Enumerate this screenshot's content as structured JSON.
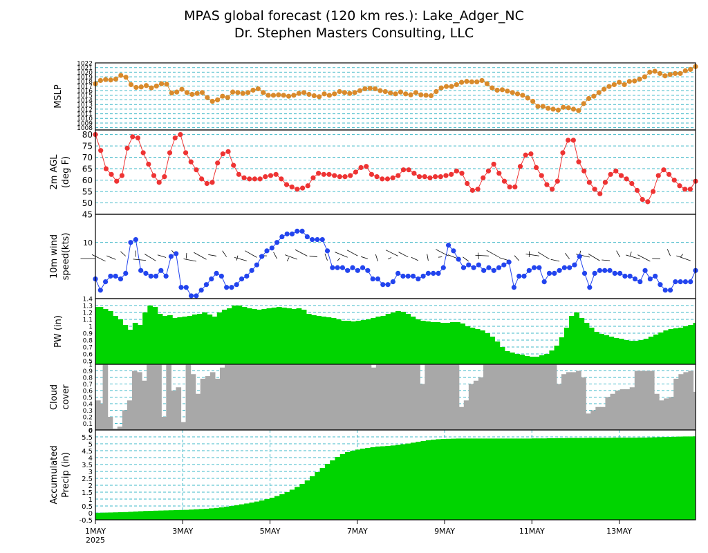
{
  "title": "MPAS global forecast (120 km res.): Lake_Adger_NC",
  "subtitle": "Dr. Stephen Masters Consulting, LLC",
  "colors": {
    "mslp": "#d98a2b",
    "temp": "#ee3333",
    "wind": "#2244ee",
    "green": "#00d400",
    "cloud": "#a8a8a8",
    "grid": "#3fb8c8"
  },
  "x_axis": {
    "tick_labels": [
      "1MAY",
      "3MAY",
      "5MAY",
      "7MAY",
      "9MAY",
      "11MAY",
      "13MAY"
    ],
    "year_label": "2025",
    "tick_days": [
      0,
      2,
      4,
      6,
      8,
      10,
      12
    ],
    "start_day": 0,
    "end_day": 13.75
  },
  "chart_data": [
    {
      "type": "line",
      "ylabel": "MSLP",
      "ylim": [
        1007.5,
        1022
      ],
      "yticks": [
        "1008",
        "1009",
        "1010",
        "1011",
        "1012",
        "1013",
        "1014",
        "1015",
        "1016",
        "1017",
        "1018",
        "1019",
        "1020",
        "1021",
        "1022"
      ],
      "series": [
        {
          "values": [
            1017.5,
            1018.2,
            1018.4,
            1018.3,
            1018.5,
            1019.3,
            1018.9,
            1017.3,
            1016.7,
            1016.8,
            1017.1,
            1016.6,
            1017.0,
            1017.5,
            1017.4,
            1015.5,
            1015.7,
            1016.3,
            1015.6,
            1015.2,
            1015.4,
            1015.6,
            1014.5,
            1013.7,
            1014.0,
            1014.8,
            1014.5,
            1015.7,
            1015.6,
            1015.4,
            1015.6,
            1016.1,
            1016.4,
            1015.6,
            1015.0,
            1015.0,
            1015.1,
            1015.0,
            1014.8,
            1015.0,
            1015.4,
            1015.6,
            1015.2,
            1014.9,
            1014.7,
            1015.3,
            1015.0,
            1015.3,
            1015.8,
            1015.6,
            1015.4,
            1015.6,
            1016.0,
            1016.4,
            1016.5,
            1016.4,
            1016.0,
            1015.8,
            1015.5,
            1015.3,
            1015.7,
            1015.3,
            1015.1,
            1015.6,
            1015.1,
            1015.0,
            1014.9,
            1015.8,
            1016.6,
            1016.9,
            1016.9,
            1017.3,
            1017.8,
            1018.0,
            1017.9,
            1017.9,
            1018.2,
            1017.5,
            1016.6,
            1016.1,
            1016.2,
            1015.9,
            1015.6,
            1015.3,
            1015.0,
            1014.4,
            1013.7,
            1012.6,
            1012.6,
            1012.2,
            1012.0,
            1011.8,
            1012.4,
            1012.3,
            1012.0,
            1011.7,
            1013.2,
            1014.3,
            1014.8,
            1015.6,
            1016.3,
            1016.9,
            1017.3,
            1017.8,
            1017.3,
            1018.0,
            1018.1,
            1018.5,
            1019.0,
            1020.0,
            1020.2,
            1019.7,
            1019.2,
            1019.5,
            1019.7,
            1019.7,
            1020.3,
            1020.6,
            1021.2
          ]
        }
      ]
    },
    {
      "type": "line",
      "ylabel": "2m AGL (deg F)",
      "ylim": [
        45,
        82
      ],
      "yticks": [
        "45",
        "50",
        "55",
        "60",
        "65",
        "70",
        "75",
        "80"
      ],
      "series": [
        {
          "values": [
            80,
            73,
            65,
            62.5,
            59.5,
            62,
            74,
            79,
            78.5,
            72,
            67,
            62,
            59,
            61.5,
            72,
            78.5,
            80,
            72,
            68,
            64.5,
            60.5,
            58.5,
            59,
            67.5,
            71.5,
            72.5,
            66.5,
            62.5,
            61,
            60.5,
            60.5,
            60.5,
            61.5,
            62,
            62.5,
            60.5,
            58,
            57,
            56,
            56.5,
            57.5,
            61,
            63,
            62.5,
            62.5,
            62,
            61.5,
            61.5,
            62,
            63.5,
            65.5,
            66,
            62.5,
            61.5,
            60.5,
            60.5,
            61,
            62,
            64.5,
            64.5,
            63,
            61.5,
            61.5,
            61,
            61.5,
            61.5,
            62,
            62.5,
            64,
            63,
            58.5,
            55.5,
            56,
            61,
            64,
            67,
            63,
            59.5,
            57,
            57,
            66,
            71,
            71.5,
            65.5,
            62,
            58,
            56,
            59.5,
            72,
            77.5,
            77.5,
            68,
            64,
            59,
            56,
            54,
            59,
            62.5,
            64,
            62,
            60.5,
            58.5,
            55.5,
            51.5,
            50.5,
            55,
            62,
            64.5,
            62.5,
            60,
            57.5,
            56,
            56,
            59.5
          ]
        }
      ]
    },
    {
      "type": "line",
      "ylabel": "10m wind speed(kts)",
      "ylim": [
        0,
        15
      ],
      "yticks": [
        "10"
      ],
      "series": [
        {
          "values": [
            3.5,
            1.5,
            3,
            4,
            4,
            3.5,
            4.5,
            10,
            10.5,
            5,
            4.5,
            4,
            4,
            5,
            4,
            7.5,
            8,
            2,
            2,
            0.5,
            0.5,
            1.5,
            2.5,
            3.5,
            4.5,
            4,
            2,
            2,
            2.5,
            3.5,
            4,
            5,
            6,
            7.5,
            8.5,
            9,
            10,
            11,
            11.5,
            11.5,
            12,
            12,
            11,
            10.5,
            10.5,
            10.5,
            8.5,
            5.5,
            5.5,
            5.5,
            5,
            5.5,
            5,
            5.5,
            5,
            3.5,
            3.5,
            2.5,
            2.5,
            3,
            4.5,
            4,
            4,
            4,
            3.5,
            4,
            4.5,
            4.5,
            4.5,
            5.5,
            9.5,
            8.5,
            7,
            5.5,
            6,
            5.5,
            6,
            5,
            5.5,
            5,
            5.5,
            6,
            6.5,
            2,
            4,
            4,
            5,
            5.5,
            5.5,
            3,
            4.5,
            4.5,
            5,
            5.5,
            5.5,
            6,
            7.5,
            4.5,
            2,
            4.5,
            5,
            5,
            5,
            4.5,
            4.5,
            4,
            4,
            3.5,
            3,
            5,
            3.5,
            4,
            2.5,
            1.5,
            1.5,
            3,
            3,
            3,
            3,
            5
          ]
        }
      ]
    },
    {
      "type": "bar",
      "ylabel": "PW (in)",
      "ylim": [
        0.45,
        1.4
      ],
      "yticks": [
        "0.5",
        "0.6",
        "0.7",
        "0.8",
        "0.9",
        "1",
        "1.1",
        "1.2",
        "1.3",
        "1.4"
      ],
      "series": [
        {
          "values": [
            1.28,
            1.28,
            1.25,
            1.22,
            1.15,
            1.1,
            1.02,
            0.95,
            1.05,
            1.02,
            1.2,
            1.3,
            1.28,
            1.18,
            1.15,
            1.16,
            1.12,
            1.13,
            1.14,
            1.15,
            1.17,
            1.18,
            1.2,
            1.17,
            1.14,
            1.2,
            1.24,
            1.26,
            1.3,
            1.3,
            1.28,
            1.26,
            1.25,
            1.24,
            1.25,
            1.26,
            1.27,
            1.28,
            1.27,
            1.26,
            1.25,
            1.26,
            1.24,
            1.18,
            1.16,
            1.15,
            1.14,
            1.13,
            1.12,
            1.1,
            1.08,
            1.08,
            1.07,
            1.08,
            1.09,
            1.1,
            1.12,
            1.14,
            1.15,
            1.18,
            1.2,
            1.22,
            1.21,
            1.18,
            1.14,
            1.1,
            1.08,
            1.07,
            1.06,
            1.06,
            1.05,
            1.05,
            1.06,
            1.06,
            1.04,
            1.0,
            0.98,
            0.96,
            0.94,
            0.9,
            0.85,
            0.78,
            0.7,
            0.64,
            0.62,
            0.6,
            0.59,
            0.57,
            0.56,
            0.56,
            0.58,
            0.6,
            0.65,
            0.72,
            0.84,
            0.98,
            1.15,
            1.2,
            1.12,
            1.05,
            0.98,
            0.92,
            0.89,
            0.87,
            0.85,
            0.83,
            0.82,
            0.8,
            0.79,
            0.79,
            0.8,
            0.82,
            0.85,
            0.88,
            0.91,
            0.94,
            0.96,
            0.97,
            0.98,
            1.0,
            1.02,
            1.05
          ]
        }
      ]
    },
    {
      "type": "bar",
      "ylabel": "Cloud cover",
      "ylim": [
        0,
        1
      ],
      "yticks": [
        "0",
        "0.1",
        "0.2",
        "0.3",
        "0.4",
        "0.5",
        "0.6",
        "0.7",
        "0.8",
        "0.9",
        "1"
      ],
      "series": [
        {
          "values": [
            0.45,
            0.4,
            1,
            0.2,
            0.02,
            0.05,
            0.3,
            0.45,
            0.9,
            0.88,
            0.75,
            1,
            1,
            1,
            0.2,
            1,
            0.6,
            0.65,
            0.12,
            1,
            0.85,
            0.55,
            0.78,
            0.82,
            0.88,
            0.78,
            0.95,
            1,
            1,
            1,
            1,
            1,
            1,
            1,
            1,
            1,
            1,
            1,
            1,
            1,
            1,
            1,
            1,
            1,
            1,
            1,
            1,
            1,
            1,
            1,
            1,
            1,
            1,
            1,
            1,
            1,
            1,
            0.95,
            1,
            1,
            1,
            1,
            1,
            1,
            1,
            1,
            1,
            0.7,
            1,
            1,
            1,
            1,
            1,
            1,
            1,
            0.35,
            0.45,
            0.7,
            0.75,
            0.8,
            1,
            1,
            1,
            1,
            1,
            1,
            1,
            1,
            1,
            1,
            1,
            1,
            1,
            1,
            1,
            0.7,
            0.85,
            0.88,
            0.88,
            0.9,
            0.8,
            0.25,
            0.3,
            0.35,
            0.35,
            0.5,
            0.55,
            0.6,
            0.62,
            0.62,
            0.65,
            0.9,
            0.9,
            0.9,
            0.9,
            0.55,
            0.45,
            0.48,
            0.5,
            0.78,
            0.85,
            0.88,
            0.9,
            0.58
          ]
        }
      ]
    },
    {
      "type": "area",
      "ylabel": "Accumulated Precip (in)",
      "ylim": [
        -0.5,
        6
      ],
      "yticks": [
        "-0.5",
        "0",
        "0.5",
        "1",
        "1.5",
        "2",
        "2.5",
        "3",
        "3.5",
        "4",
        "4.5",
        "5",
        "5.5",
        "6"
      ],
      "series": [
        {
          "values": [
            0,
            0.01,
            0.02,
            0.03,
            0.04,
            0.05,
            0.06,
            0.08,
            0.1,
            0.12,
            0.14,
            0.15,
            0.16,
            0.17,
            0.18,
            0.19,
            0.2,
            0.21,
            0.22,
            0.24,
            0.26,
            0.28,
            0.3,
            0.33,
            0.36,
            0.4,
            0.45,
            0.5,
            0.56,
            0.62,
            0.68,
            0.75,
            0.82,
            0.9,
            1.0,
            1.1,
            1.22,
            1.35,
            1.5,
            1.68,
            1.88,
            2.1,
            2.35,
            2.65,
            2.95,
            3.25,
            3.55,
            3.8,
            4.05,
            4.25,
            4.4,
            4.5,
            4.58,
            4.65,
            4.7,
            4.75,
            4.8,
            4.82,
            4.85,
            4.88,
            4.92,
            4.97,
            5.02,
            5.08,
            5.14,
            5.2,
            5.26,
            5.3,
            5.33,
            5.35,
            5.36,
            5.37,
            5.38,
            5.38,
            5.38,
            5.38,
            5.38,
            5.38,
            5.38,
            5.38,
            5.38,
            5.38,
            5.38,
            5.38,
            5.38,
            5.38,
            5.38,
            5.39,
            5.39,
            5.39,
            5.4,
            5.4,
            5.41,
            5.41,
            5.42,
            5.42,
            5.42,
            5.42,
            5.43,
            5.43,
            5.43,
            5.43,
            5.43,
            5.44,
            5.44,
            5.44,
            5.44,
            5.44,
            5.45,
            5.45,
            5.46,
            5.47,
            5.48,
            5.49,
            5.5,
            5.51,
            5.52,
            5.53,
            5.53,
            5.54
          ]
        }
      ]
    }
  ]
}
